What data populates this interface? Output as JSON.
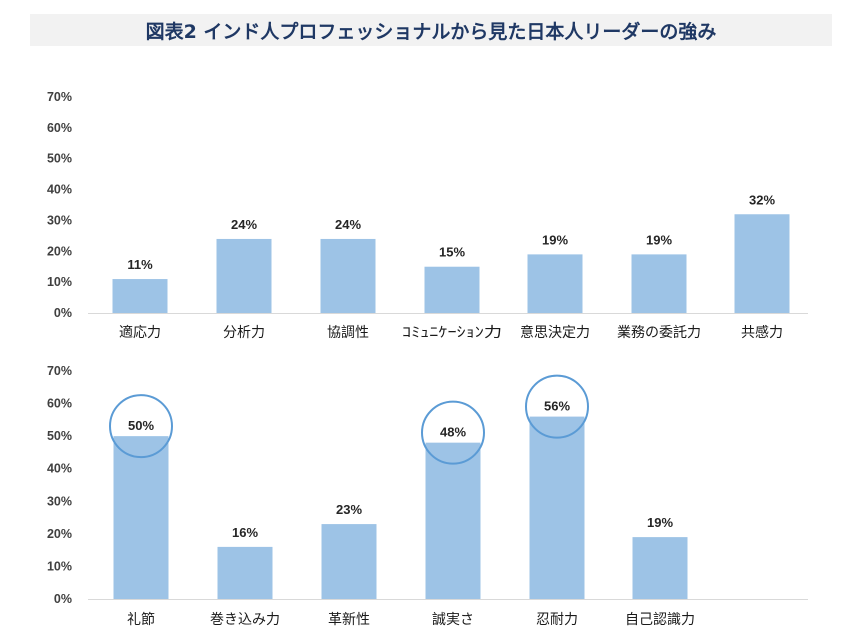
{
  "title": "図表2 インド人プロフェッショナルから見た日本人リーダーの強み",
  "chart_data": [
    {
      "type": "bar",
      "categories": [
        "適応力",
        "分析力",
        "協調性",
        "ｺﾐｭﾆｹｰｼｮﾝ力",
        "意思決定力",
        "業務の委託力",
        "共感力"
      ],
      "values": [
        11,
        24,
        24,
        15,
        19,
        19,
        32
      ],
      "data_labels": [
        "11%",
        "24%",
        "24%",
        "15%",
        "19%",
        "19%",
        "32%"
      ],
      "yticks": [
        "0%",
        "10%",
        "20%",
        "30%",
        "40%",
        "50%",
        "60%",
        "70%"
      ],
      "ylim": [
        0,
        70
      ],
      "highlighted": [],
      "bar_color": "#9dc3e6"
    },
    {
      "type": "bar",
      "categories": [
        "礼節",
        "巻き込み力",
        "革新性",
        "誠実さ",
        "忍耐力",
        "自己認識力"
      ],
      "values": [
        50,
        16,
        23,
        48,
        56,
        19
      ],
      "data_labels": [
        "50%",
        "16%",
        "23%",
        "48%",
        "56%",
        "19%"
      ],
      "yticks": [
        "0%",
        "10%",
        "20%",
        "30%",
        "40%",
        "50%",
        "60%",
        "70%"
      ],
      "ylim": [
        0,
        70
      ],
      "highlighted": [
        0,
        3,
        4
      ],
      "highlight_color": "#5b9bd5",
      "bar_color": "#9dc3e6"
    }
  ]
}
